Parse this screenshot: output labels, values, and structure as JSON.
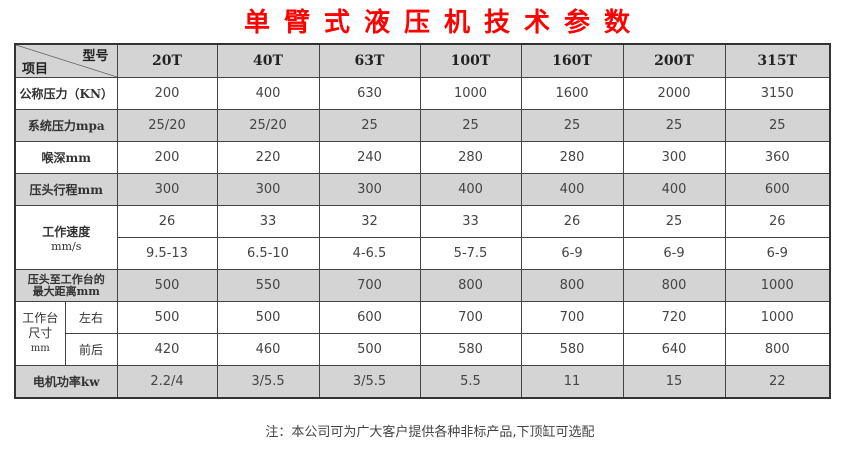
{
  "title": "单臂式液压机技术参数",
  "header": {
    "corner_top": "型号",
    "corner_bottom": "项目",
    "models": [
      "20T",
      "40T",
      "63T",
      "100T",
      "160T",
      "200T",
      "315T"
    ]
  },
  "rows": {
    "nominal": {
      "label": "公称压力（KN）",
      "values": [
        "200",
        "400",
        "630",
        "1000",
        "1600",
        "2000",
        "3150"
      ]
    },
    "system": {
      "label": "系统压力mpa",
      "values": [
        "25/20",
        "25/20",
        "25",
        "25",
        "25",
        "25",
        "25"
      ]
    },
    "throat": {
      "label": "喉深mm",
      "values": [
        "200",
        "220",
        "240",
        "280",
        "280",
        "300",
        "360"
      ]
    },
    "stroke": {
      "label": "压头行程mm",
      "values": [
        "300",
        "300",
        "300",
        "400",
        "400",
        "400",
        "600"
      ]
    },
    "speed": {
      "label": "工作速度",
      "unit": "mm/s",
      "values_a": [
        "26",
        "33",
        "32",
        "33",
        "26",
        "25",
        "26"
      ],
      "values_b": [
        "9.5-13",
        "6.5-10",
        "4-6.5",
        "5-7.5",
        "6-9",
        "6-9",
        "6-9"
      ]
    },
    "daylight": {
      "label_1": "压头至工作台的",
      "label_2": "最大距离mm",
      "values": [
        "500",
        "550",
        "700",
        "800",
        "800",
        "800",
        "1000"
      ]
    },
    "table": {
      "label_1": "工作台",
      "label_2": "尺寸",
      "label_3": "mm",
      "lr_label": "左右",
      "fb_label": "前后",
      "lr_values": [
        "500",
        "500",
        "600",
        "700",
        "700",
        "720",
        "1000"
      ],
      "fb_values": [
        "420",
        "460",
        "500",
        "580",
        "580",
        "640",
        "800"
      ]
    },
    "motor": {
      "label": "电机功率kw",
      "values": [
        "2.2/4",
        "3/5.5",
        "3/5.5",
        "5.5",
        "11",
        "15",
        "22"
      ]
    }
  },
  "note": "注：本公司可为广大客户提供各种非标产品,下顶缸可选配"
}
